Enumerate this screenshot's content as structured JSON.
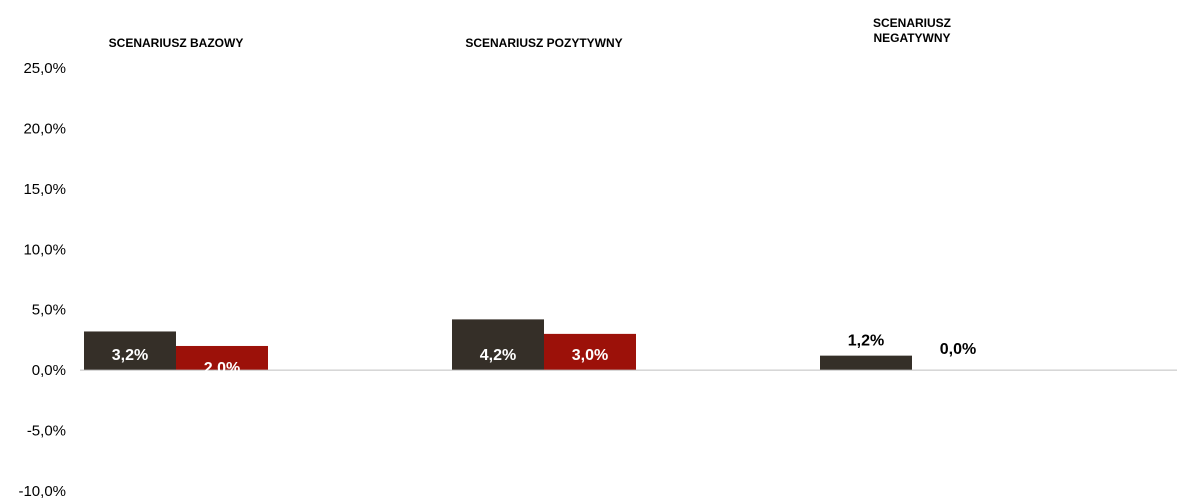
{
  "chart_data": {
    "type": "bar",
    "categories": [
      "SCENARIUSZ BAZOWY",
      "SCENARIUSZ POZYTYWNY",
      "SCENARIUSZ NEGATYWNY"
    ],
    "series": [
      {
        "values": [
          3.2,
          4.2,
          1.2
        ],
        "labels": [
          "3,2%",
          "4,2%",
          "1,2%"
        ],
        "color": "#352f28"
      },
      {
        "values": [
          2.0,
          3.0,
          0.0
        ],
        "labels": [
          "2,0%",
          "3,0%",
          "0,0%"
        ],
        "color": "#9c1109"
      }
    ],
    "ylim": [
      -10,
      25
    ],
    "yticks": [
      "25,0%",
      "20,0%",
      "15,0%",
      "10,0%",
      "5,0%",
      "0,0%",
      "-5,0%",
      "-10,0%"
    ],
    "ytick_values": [
      25,
      20,
      15,
      10,
      5,
      0,
      -5,
      -10
    ],
    "grid": false,
    "axis_color": "#bfbfbf"
  }
}
